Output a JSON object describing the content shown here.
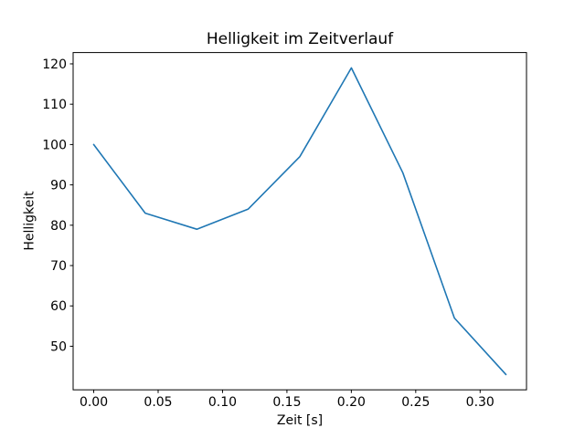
{
  "chart_data": {
    "type": "line",
    "title": "Helligkeit im Zeitverlauf",
    "xlabel": "Zeit [s]",
    "ylabel": "Helligkeit",
    "x": [
      0.0,
      0.04,
      0.08,
      0.12,
      0.16,
      0.2,
      0.24,
      0.28,
      0.32
    ],
    "series": [
      {
        "name": "Helligkeit",
        "values": [
          100,
          83,
          79,
          84,
          97,
          119,
          93,
          57,
          43
        ]
      }
    ],
    "xticks": [
      0.0,
      0.05,
      0.1,
      0.15,
      0.2,
      0.25,
      0.3
    ],
    "xtick_labels": [
      "0.00",
      "0.05",
      "0.10",
      "0.15",
      "0.20",
      "0.25",
      "0.30"
    ],
    "yticks": [
      50,
      60,
      70,
      80,
      90,
      100,
      110,
      120
    ],
    "ytick_labels": [
      "50",
      "60",
      "70",
      "80",
      "90",
      "100",
      "110",
      "120"
    ],
    "xlim": [
      -0.016,
      0.336
    ],
    "ylim": [
      39.2,
      122.8
    ],
    "grid": false,
    "legend": "none",
    "line_color": "#1f77b4",
    "axes_color": "#000000",
    "background_color": "#ffffff"
  }
}
